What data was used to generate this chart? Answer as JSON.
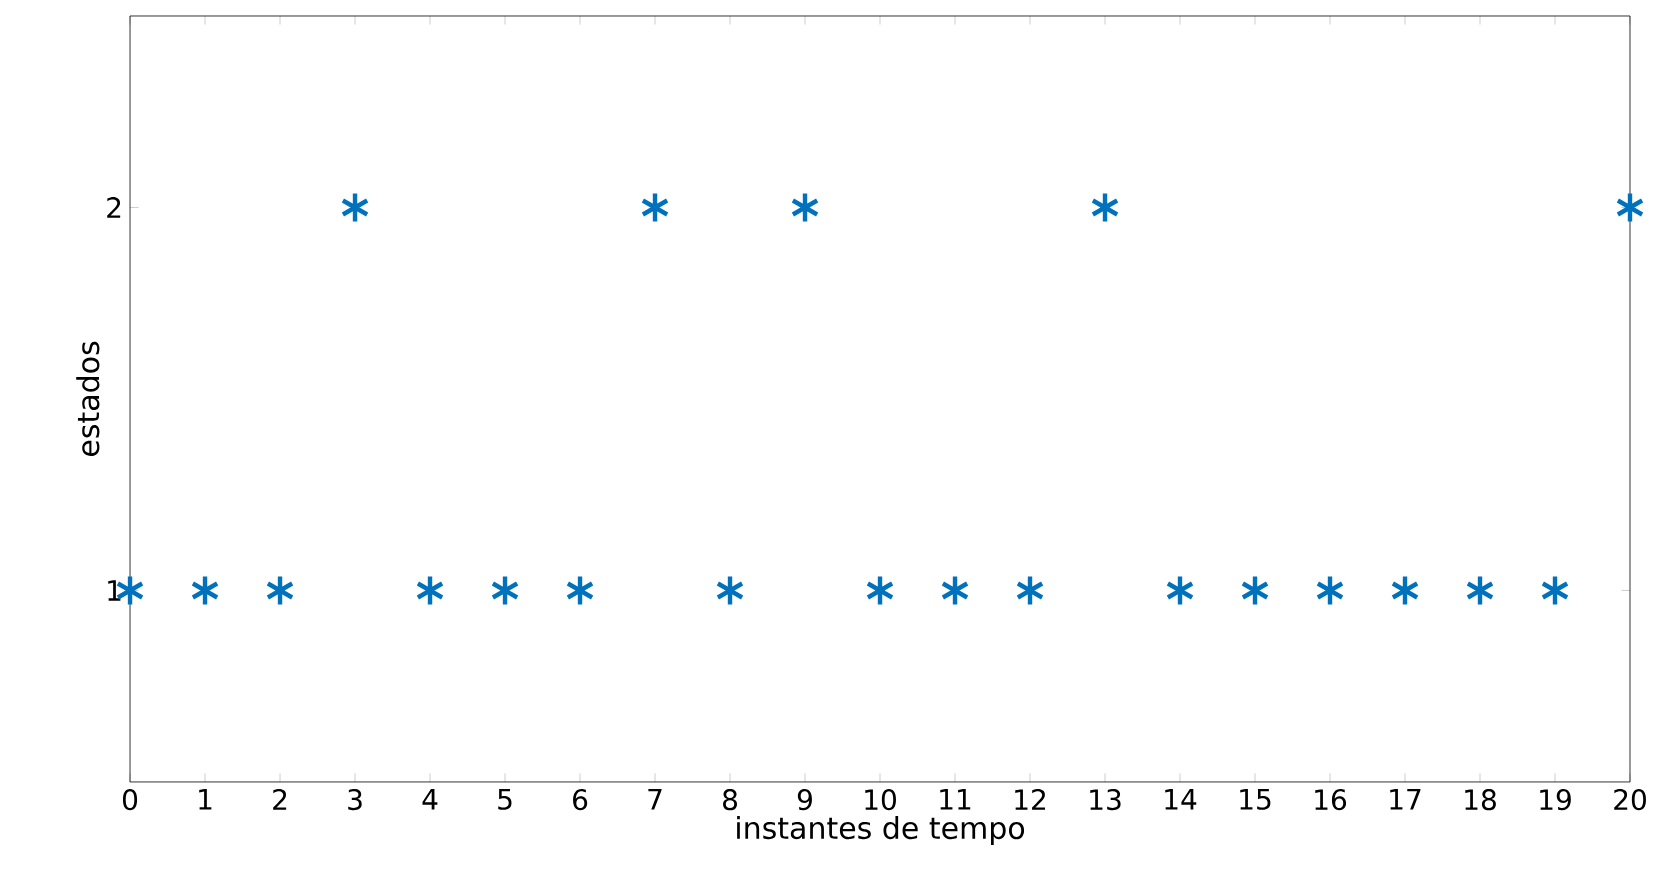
{
  "chart_data": {
    "type": "scatter",
    "xlabel": "instantes de tempo",
    "ylabel": "estados",
    "x": [
      0,
      1,
      2,
      3,
      4,
      5,
      6,
      7,
      8,
      9,
      10,
      11,
      12,
      13,
      14,
      15,
      16,
      17,
      18,
      19,
      20
    ],
    "values": [
      1,
      1,
      1,
      2,
      1,
      1,
      1,
      2,
      1,
      2,
      1,
      1,
      1,
      2,
      1,
      1,
      1,
      1,
      1,
      1,
      2
    ],
    "color": "#0072bd",
    "marker": "cross",
    "xlim": [
      0,
      20
    ],
    "ylim": [
      0.5,
      2.5
    ],
    "xticks": [
      0,
      1,
      2,
      3,
      4,
      5,
      6,
      7,
      8,
      9,
      10,
      11,
      12,
      13,
      14,
      15,
      16,
      17,
      18,
      19,
      20
    ],
    "yticks": [
      1,
      2
    ]
  }
}
